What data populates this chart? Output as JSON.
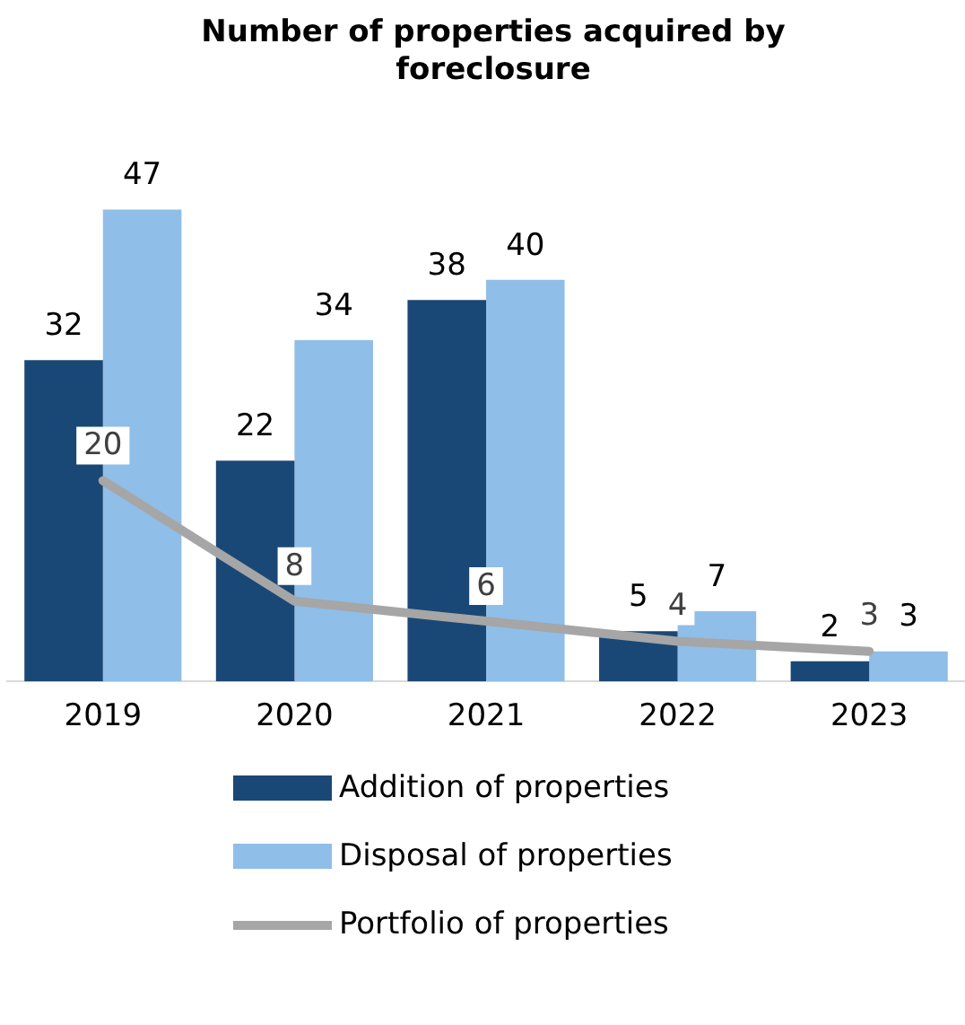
{
  "chart_data": {
    "type": "bar",
    "title": "Number of properties acquired by foreclosure",
    "categories": [
      "2019",
      "2020",
      "2021",
      "2022",
      "2023"
    ],
    "series": [
      {
        "name": "Addition of properties",
        "color": "#1a4876",
        "values": [
          32,
          22,
          38,
          5,
          2
        ]
      },
      {
        "name": "Disposal of properties",
        "color": "#8fbee8",
        "values": [
          47,
          34,
          40,
          7,
          3
        ]
      },
      {
        "name": "Portfolio of properties",
        "type": "line",
        "color": "#a6a6a6",
        "values": [
          20,
          8,
          6,
          4,
          3
        ]
      }
    ],
    "data_labels": true,
    "legend": "bottom",
    "grid": false,
    "marker": "none"
  }
}
